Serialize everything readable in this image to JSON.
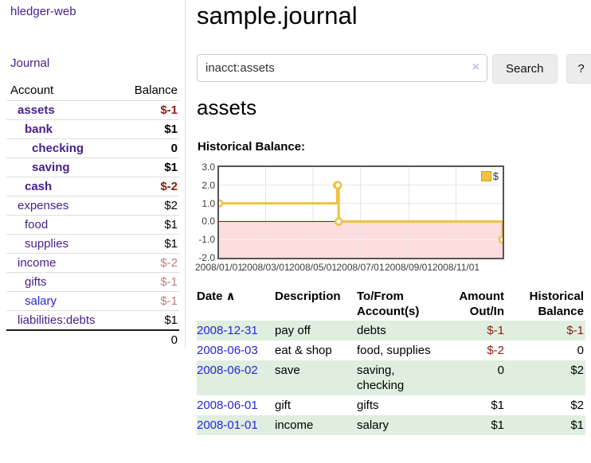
{
  "colors": {
    "link_purple": "#46208c",
    "link_blue": "#2626d9",
    "negative_strong": "#8c1e14",
    "negative_soft": "#c17d7d",
    "row_stripe_green": "#dfeedf",
    "chart_line_gold": "#EDC240",
    "chart_negative_pink": "#fcdcdc",
    "chart_zero_line": "#8b0000",
    "chart_border": "#545454"
  },
  "app": {
    "brand": "hledger-web",
    "nav_journal": "Journal"
  },
  "sidebar": {
    "account_header": "Account",
    "balance_header": "Balance",
    "accounts": [
      {
        "name": "assets",
        "depth": 1,
        "balance": "$-1",
        "bold": true,
        "balance_style": "neg_strong",
        "link_style": "purple"
      },
      {
        "name": "bank",
        "depth": 2,
        "balance": "$1",
        "bold": true,
        "balance_style": "pos",
        "link_style": "purple"
      },
      {
        "name": "checking",
        "depth": 3,
        "balance": "0",
        "bold": true,
        "balance_style": "pos",
        "link_style": "purple"
      },
      {
        "name": "saving",
        "depth": 3,
        "balance": "$1",
        "bold": true,
        "balance_style": "pos",
        "link_style": "purple"
      },
      {
        "name": "cash",
        "depth": 2,
        "balance": "$-2",
        "bold": true,
        "balance_style": "neg_strong",
        "link_style": "purple"
      },
      {
        "name": "expenses",
        "depth": 1,
        "balance": "$2",
        "bold": false,
        "balance_style": "pos",
        "link_style": "purple"
      },
      {
        "name": "food",
        "depth": 2,
        "balance": "$1",
        "bold": false,
        "balance_style": "pos",
        "link_style": "purple"
      },
      {
        "name": "supplies",
        "depth": 2,
        "balance": "$1",
        "bold": false,
        "balance_style": "pos",
        "link_style": "purple"
      },
      {
        "name": "income",
        "depth": 1,
        "balance": "$-2",
        "bold": false,
        "balance_style": "neg_soft",
        "link_style": "purple"
      },
      {
        "name": "gifts",
        "depth": 2,
        "balance": "$-1",
        "bold": false,
        "balance_style": "neg_soft",
        "link_style": "purple"
      },
      {
        "name": "salary",
        "depth": 2,
        "balance": "$-1",
        "bold": false,
        "balance_style": "neg_soft",
        "link_style": "blue"
      },
      {
        "name": "liabilities:debts",
        "depth": 1,
        "balance": "$1",
        "bold": false,
        "balance_style": "pos",
        "link_style": "purple"
      }
    ],
    "total": "0"
  },
  "header": {
    "title": "sample.journal"
  },
  "search": {
    "value": "inacct:assets",
    "clear_label": "×",
    "button_label": "Search",
    "help_label": "?"
  },
  "account_page": {
    "title": "assets",
    "chart_label": "Historical Balance:"
  },
  "chart_data": {
    "type": "line",
    "step": true,
    "title": "Historical Balance",
    "x_range": [
      "2008-01-01",
      "2008-12-31"
    ],
    "ylim": [
      -2,
      3
    ],
    "series": [
      {
        "name": "$",
        "color": "#EDC240",
        "points": [
          [
            "2008-01-01",
            1
          ],
          [
            "2008-06-01",
            2
          ],
          [
            "2008-06-02",
            2
          ],
          [
            "2008-06-03",
            0
          ],
          [
            "2008-12-31",
            -1
          ]
        ]
      }
    ],
    "yticks": [
      {
        "v": 3,
        "label": "3.0"
      },
      {
        "v": 2,
        "label": "2.0"
      },
      {
        "v": 1,
        "label": "1.0"
      },
      {
        "v": 0,
        "label": "0.0"
      },
      {
        "v": -1,
        "label": "-1.0"
      },
      {
        "v": -2,
        "label": "-2.0"
      }
    ],
    "xticks": [
      {
        "date": "2008-01-01",
        "label": "2008/01/01"
      },
      {
        "date": "2008-03-01",
        "label": "2008/03/01"
      },
      {
        "date": "2008-05-01",
        "label": "2008/05/01"
      },
      {
        "date": "2008-07-01",
        "label": "2008/07/01"
      },
      {
        "date": "2008-09-01",
        "label": "2008/09/01"
      },
      {
        "date": "2008-11-01",
        "label": "2008/11/01"
      }
    ],
    "legend_position": "top-right",
    "grid": true
  },
  "register": {
    "headers": [
      {
        "label": "Date",
        "sort_indicator": "∧",
        "align": "left"
      },
      {
        "label": "Description",
        "align": "left"
      },
      {
        "label": "To/From Account(s)",
        "align": "left"
      },
      {
        "label": "Amount Out/In",
        "align": "right"
      },
      {
        "label": "Historical Balance",
        "align": "right"
      }
    ],
    "rows": [
      {
        "date": "2008-12-31",
        "description": "pay off",
        "accounts": "debts",
        "amount": "$-1",
        "amount_neg": true,
        "balance": "$-1",
        "balance_neg": true,
        "stripe": true
      },
      {
        "date": "2008-06-03",
        "description": "eat & shop",
        "accounts": "food, supplies",
        "amount": "$-2",
        "amount_neg": true,
        "balance": "0",
        "balance_neg": false,
        "stripe": false
      },
      {
        "date": "2008-06-02",
        "description": "save",
        "accounts": "saving, checking",
        "amount": "0",
        "amount_neg": false,
        "balance": "$2",
        "balance_neg": false,
        "stripe": true
      },
      {
        "date": "2008-06-01",
        "description": "gift",
        "accounts": "gifts",
        "amount": "$1",
        "amount_neg": false,
        "balance": "$2",
        "balance_neg": false,
        "stripe": false
      },
      {
        "date": "2008-01-01",
        "description": "income",
        "accounts": "salary",
        "amount": "$1",
        "amount_neg": false,
        "balance": "$1",
        "balance_neg": false,
        "stripe": true
      }
    ]
  }
}
